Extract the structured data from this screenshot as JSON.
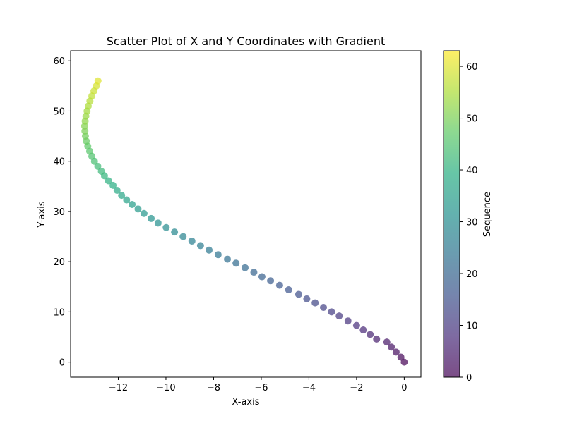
{
  "chart_data": {
    "type": "scatter",
    "title": "Scatter Plot of X and Y Coordinates with Gradient",
    "xlabel": "X-axis",
    "ylabel": "Y-axis",
    "xlim": [
      -14.0,
      0.7
    ],
    "ylim": [
      -3,
      62
    ],
    "xticks": [
      -12,
      -10,
      -8,
      -6,
      -4,
      -2,
      0
    ],
    "xtick_labels": [
      "−12",
      "−10",
      "−8",
      "−6",
      "−4",
      "−2",
      "0"
    ],
    "yticks": [
      0,
      10,
      20,
      30,
      40,
      50,
      60
    ],
    "ytick_labels": [
      "0",
      "10",
      "20",
      "30",
      "40",
      "50",
      "60"
    ],
    "grid": false,
    "colormap": "viridis",
    "marker_alpha": 0.7,
    "colorbar": {
      "label": "Sequence",
      "range": [
        0,
        63
      ],
      "ticks": [
        0,
        10,
        20,
        30,
        40,
        50,
        60
      ],
      "tick_labels": [
        "0",
        "10",
        "20",
        "30",
        "40",
        "50",
        "60"
      ]
    },
    "series": [
      {
        "x": [
          0.0,
          -0.14,
          -0.34,
          -0.54,
          -0.73,
          -1.16,
          -1.43,
          -1.72,
          -2.0,
          -2.36,
          -2.73,
          -3.05,
          -3.39,
          -3.74,
          -4.09,
          -4.43,
          -4.85,
          -5.23,
          -5.61,
          -5.97,
          -6.31,
          -6.68,
          -7.06,
          -7.42,
          -7.81,
          -8.19,
          -8.55,
          -8.91,
          -9.28,
          -9.64,
          -9.99,
          -10.33,
          -10.62,
          -10.92,
          -11.17,
          -11.42,
          -11.65,
          -11.86,
          -12.05,
          -12.22,
          -12.41,
          -12.58,
          -12.71,
          -12.86,
          -13.0,
          -13.11,
          -13.2,
          -13.28,
          -13.34,
          -13.38,
          -13.4,
          -13.41,
          -13.39,
          -13.36,
          -13.31,
          -13.26,
          -13.19,
          -13.11,
          -13.02,
          -12.92,
          -12.85
        ],
        "y": [
          0.0,
          1.0,
          2.0,
          3.0,
          4.0,
          4.6,
          5.5,
          6.4,
          7.3,
          8.2,
          9.2,
          10.0,
          10.9,
          11.8,
          12.6,
          13.5,
          14.4,
          15.3,
          16.2,
          17.0,
          17.9,
          18.8,
          19.7,
          20.5,
          21.4,
          22.3,
          23.2,
          24.1,
          25.0,
          25.9,
          26.8,
          27.7,
          28.6,
          29.6,
          30.5,
          31.4,
          32.3,
          33.2,
          34.2,
          35.2,
          36.1,
          37.1,
          38.0,
          39.0,
          40.0,
          41.0,
          42.0,
          43.0,
          44.0,
          45.0,
          46.0,
          47.0,
          48.0,
          49.0,
          50.0,
          51.0,
          52.0,
          53.0,
          54.0,
          55.0,
          56.0
        ],
        "sequence": [
          0,
          1,
          2,
          3,
          4,
          5,
          6,
          7,
          8,
          9,
          10,
          11,
          12,
          13,
          14,
          15,
          16,
          17,
          18,
          19,
          20,
          21,
          22,
          23,
          24,
          25,
          26,
          27,
          28,
          29,
          30,
          31,
          32,
          33,
          34,
          35,
          36,
          37,
          38,
          39,
          40,
          41,
          42,
          43,
          44,
          45,
          46,
          47,
          48,
          49,
          50,
          51,
          52,
          53,
          54,
          55,
          56,
          57,
          58,
          59,
          60
        ]
      }
    ]
  }
}
